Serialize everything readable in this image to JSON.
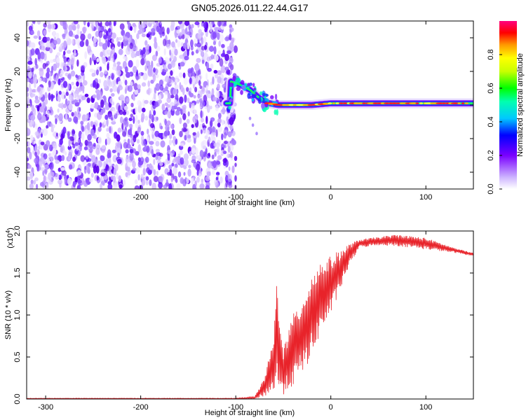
{
  "title": "GN05.2026.011.22.44.G17",
  "chart_data": [
    {
      "type": "heatmap",
      "name": "spectrogram",
      "xlabel": "Height of straight line (km)",
      "ylabel": "Frequency (Hz)",
      "xlim": [
        -320,
        150
      ],
      "ylim": [
        -50,
        50
      ],
      "xticks": [
        -300,
        -200,
        -100,
        0,
        100
      ],
      "yticks": [
        -40,
        -20,
        0,
        20,
        40
      ],
      "colorbar": {
        "label": "Normalized spectral amplitude",
        "range": [
          0,
          1
        ],
        "ticks": [
          0.0,
          0.2,
          0.4,
          0.6,
          0.8
        ]
      },
      "noise_region": {
        "x_from": -320,
        "x_to": -100
      },
      "ridge": [
        {
          "x": -105,
          "f": 14
        },
        {
          "x": -95,
          "f": 12
        },
        {
          "x": -85,
          "f": 9
        },
        {
          "x": -75,
          "f": 4
        },
        {
          "x": -65,
          "f": 1
        },
        {
          "x": -55,
          "f": 0
        },
        {
          "x": -40,
          "f": 0
        },
        {
          "x": -20,
          "f": 0
        },
        {
          "x": 0,
          "f": 1
        },
        {
          "x": 50,
          "f": 1
        },
        {
          "x": 100,
          "f": 1
        },
        {
          "x": 150,
          "f": 1
        }
      ]
    },
    {
      "type": "line",
      "name": "snr",
      "xlabel": "Height of straight line (km)",
      "ylabel": "SNR (10 * v/v)",
      "scale_label": "(x10",
      "scale_exp": "4",
      "xlim": [
        -320,
        150
      ],
      "ylim": [
        0,
        2.0
      ],
      "xticks": [
        -300,
        -200,
        -100,
        0,
        100
      ],
      "yticks": [
        0.0,
        0.5,
        1.0,
        1.5,
        2.0
      ],
      "color": "#e8232a",
      "envelope": [
        {
          "x": -320,
          "low": 0.0,
          "high": 0.01
        },
        {
          "x": -100,
          "low": 0.0,
          "high": 0.01
        },
        {
          "x": -80,
          "low": 0.0,
          "high": 0.03
        },
        {
          "x": -70,
          "low": 0.03,
          "high": 0.25
        },
        {
          "x": -60,
          "low": 0.08,
          "high": 0.75
        },
        {
          "x": -57,
          "low": 0.1,
          "high": 1.42
        },
        {
          "x": -50,
          "low": 0.05,
          "high": 0.6
        },
        {
          "x": -40,
          "low": 0.15,
          "high": 1.0
        },
        {
          "x": -30,
          "low": 0.3,
          "high": 1.2
        },
        {
          "x": -20,
          "low": 0.5,
          "high": 1.5
        },
        {
          "x": -10,
          "low": 0.8,
          "high": 1.65
        },
        {
          "x": 0,
          "low": 1.0,
          "high": 1.7
        },
        {
          "x": 10,
          "low": 1.3,
          "high": 1.78
        },
        {
          "x": 20,
          "low": 1.6,
          "high": 1.85
        },
        {
          "x": 30,
          "low": 1.8,
          "high": 1.9
        },
        {
          "x": 50,
          "low": 1.83,
          "high": 1.93
        },
        {
          "x": 70,
          "low": 1.82,
          "high": 1.96
        },
        {
          "x": 100,
          "low": 1.78,
          "high": 1.92
        },
        {
          "x": 130,
          "low": 1.74,
          "high": 1.8
        },
        {
          "x": 150,
          "low": 1.7,
          "high": 1.74
        }
      ]
    }
  ]
}
